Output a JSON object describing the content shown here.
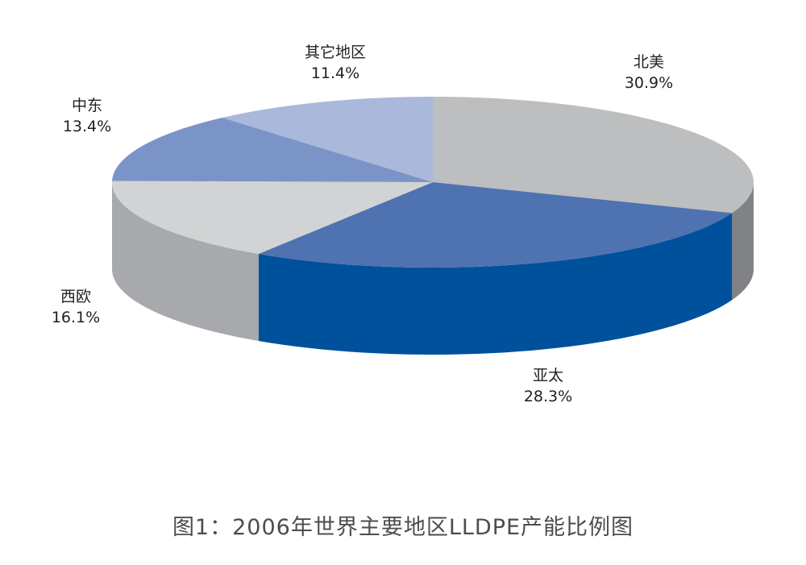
{
  "chart_data": {
    "type": "pie",
    "style": "3d",
    "title": "图1：2006年世界主要地区LLDPE产能比例图",
    "unit": "%",
    "slices": [
      {
        "label": "北美",
        "value": 30.9,
        "value_label": "30.9%",
        "color": "#bcbec0",
        "side_color": "#808285"
      },
      {
        "label": "亚太",
        "value": 28.3,
        "value_label": "28.3%",
        "color": "#4f72b0",
        "side_color": "#00519b"
      },
      {
        "label": "西欧",
        "value": 16.1,
        "value_label": "16.1%",
        "color": "#d1d3d4",
        "side_color": "#a7a9ac"
      },
      {
        "label": "中东",
        "value": 13.4,
        "value_label": "13.4%",
        "color": "#7b94c8",
        "side_color": "#5d76aa"
      },
      {
        "label": "其它地区",
        "value": 11.4,
        "value_label": "11.4%",
        "color": "#a9b8db",
        "side_color": "#8a99bd"
      }
    ]
  }
}
